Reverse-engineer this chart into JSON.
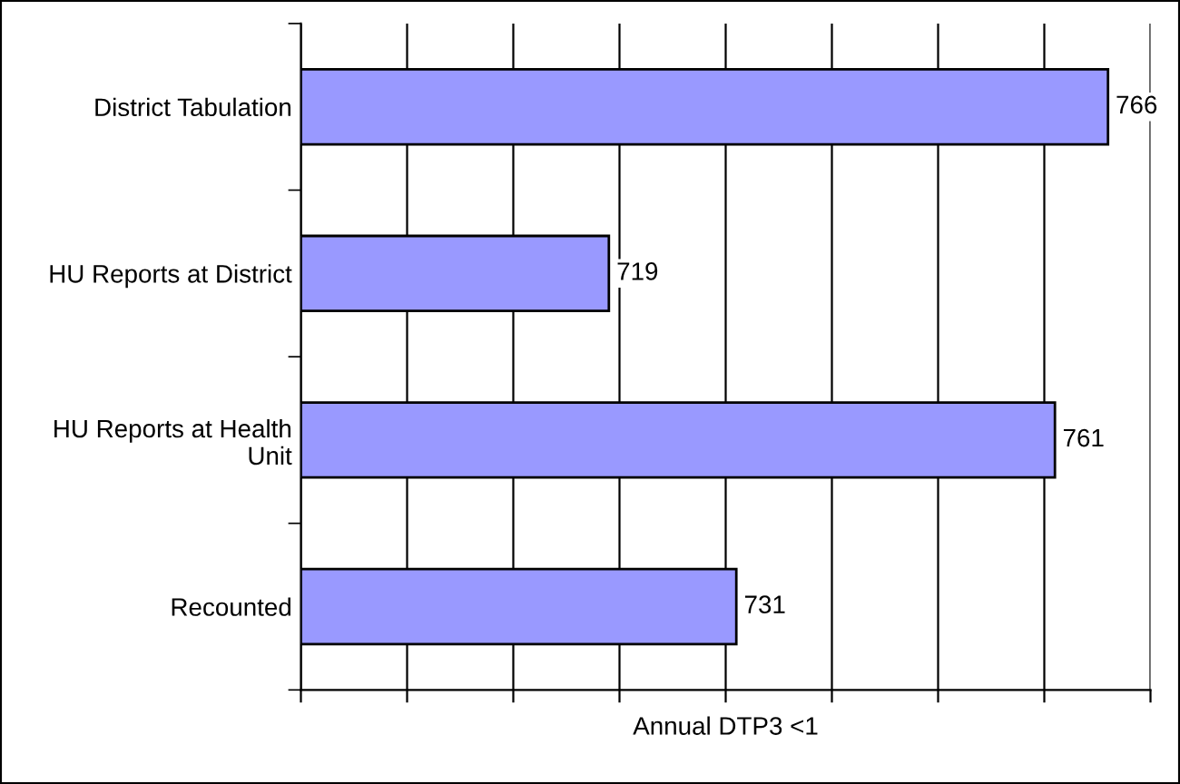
{
  "chart_data": {
    "type": "bar",
    "orientation": "horizontal",
    "xlabel": "Annual DTP3 <1",
    "categories": [
      "District Tabulation",
      "HU Reports at District",
      "HU Reports at Health\nUnit",
      "Recounted"
    ],
    "values": [
      766,
      719,
      761,
      731
    ],
    "color": "#9999ff",
    "data_labels": true,
    "xlim": [
      690,
      770
    ],
    "xticks": [
      {
        "value": 690,
        "label": null
      },
      {
        "value": 700,
        "label": null
      },
      {
        "value": 710,
        "label": null
      },
      {
        "value": 720,
        "label": null
      },
      {
        "value": 730,
        "label": null
      },
      {
        "value": 740,
        "label": null
      },
      {
        "value": 750,
        "label": null
      },
      {
        "value": 760,
        "label": null
      },
      {
        "value": 770,
        "label": null
      }
    ],
    "grid": "x"
  }
}
